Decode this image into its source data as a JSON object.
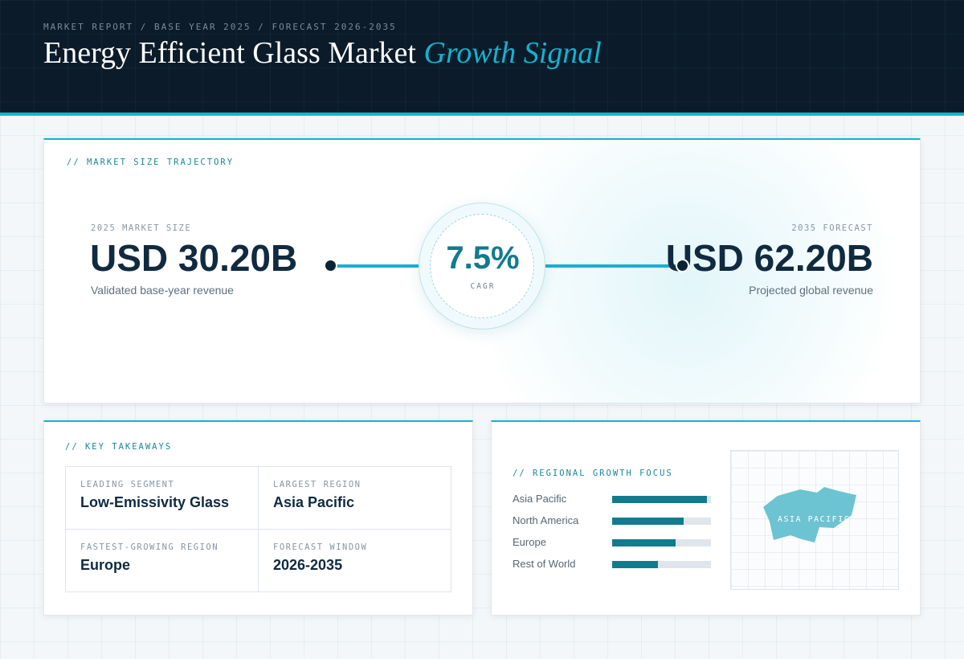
{
  "header": {
    "kicker": "MARKET REPORT / BASE YEAR 2025 / FORECAST 2026-2035",
    "title_main": "Energy Efficient Glass Market",
    "title_accent": "Growth Signal"
  },
  "trajectory": {
    "section_label": "// MARKET SIZE TRAJECTORY",
    "base": {
      "label": "2025 MARKET SIZE",
      "value": "USD 30.20B",
      "sub": "Validated base-year revenue"
    },
    "cagr": {
      "value": "7.5%",
      "label": "CAGR"
    },
    "forecast": {
      "label": "2035 FORECAST",
      "value": "USD 62.20B",
      "sub": "Projected global revenue"
    }
  },
  "takeaways": {
    "section_label": "// KEY TAKEAWAYS",
    "items": [
      {
        "label": "LEADING SEGMENT",
        "value": "Low-Emissivity Glass"
      },
      {
        "label": "LARGEST REGION",
        "value": "Asia Pacific"
      },
      {
        "label": "FASTEST-GROWING REGION",
        "value": "Europe"
      },
      {
        "label": "FORECAST WINDOW",
        "value": "2026-2035"
      }
    ]
  },
  "regional": {
    "section_label": "// REGIONAL GROWTH FOCUS",
    "bars": [
      {
        "name": "Asia Pacific",
        "level": 0.96
      },
      {
        "name": "North America",
        "level": 0.72
      },
      {
        "name": "Europe",
        "level": 0.64
      },
      {
        "name": "Rest of World",
        "level": 0.46
      }
    ],
    "map_label": "ASIA PACIFIC"
  },
  "colors": {
    "accent": "#13b3cf",
    "bar_fill": "#127b8e",
    "header_bg": "#0b1b2a"
  }
}
